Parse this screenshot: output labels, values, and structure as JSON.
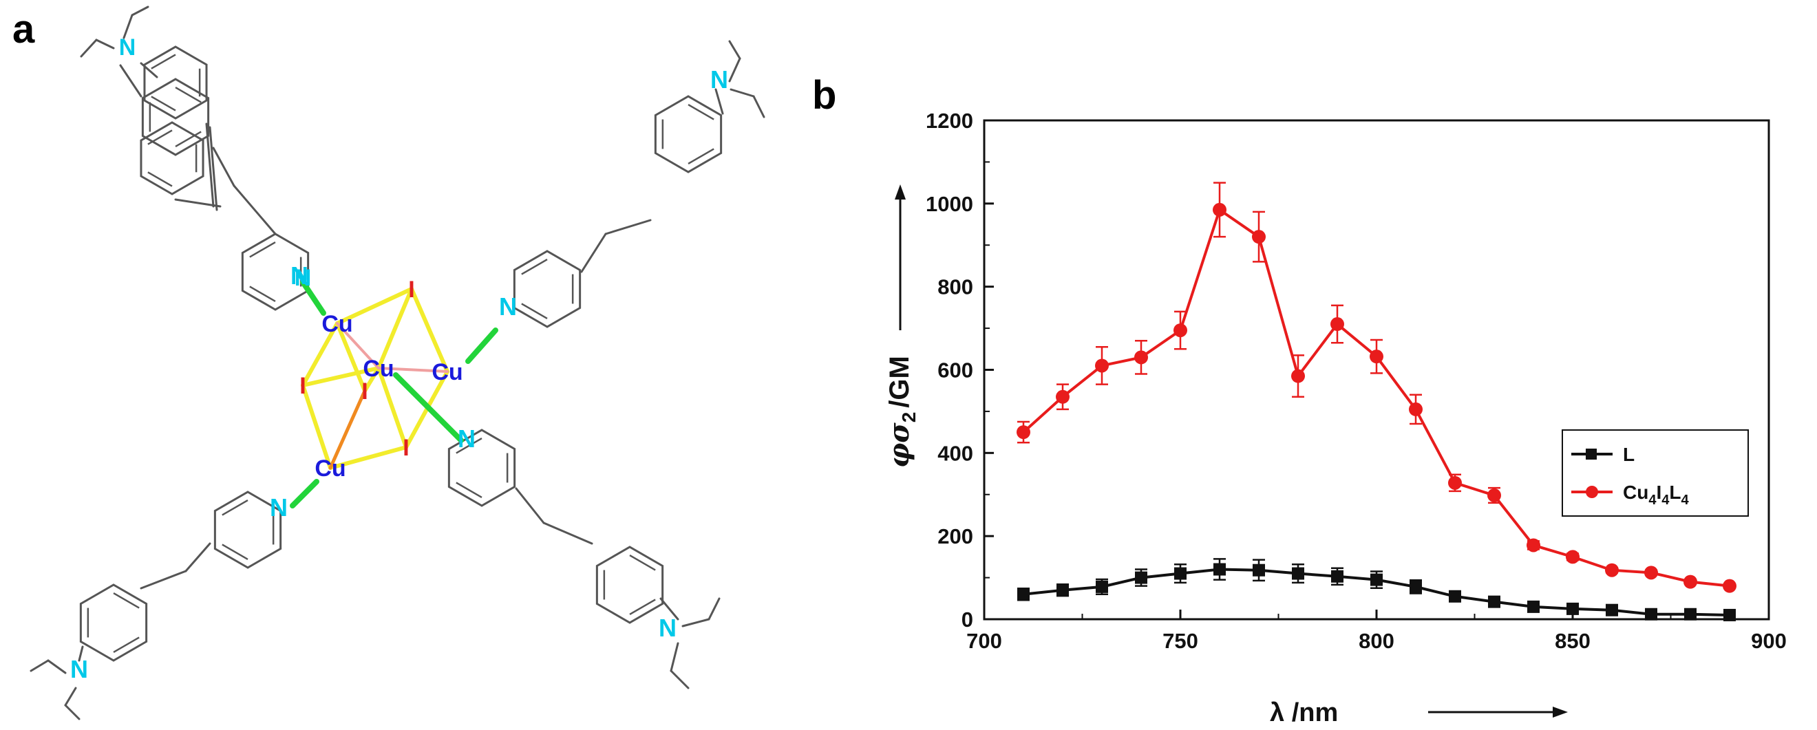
{
  "panels": {
    "a": "a",
    "b": "b"
  },
  "molecule": {
    "atoms": {
      "cu": "Cu",
      "iodine": "I",
      "nitrogen": "N"
    },
    "colors": {
      "bond": "#555555",
      "copper": "#1a1adb",
      "iodine": "#e02020",
      "nitrogen": "#00c8e8",
      "cu_i_bond": "#f2ec2c",
      "cu_n_bond": "#22d43a",
      "cu_cu_bond": "#f0a0a0",
      "cu_i_long_bond": "#f08a20"
    }
  },
  "chart_data": {
    "type": "line",
    "x": [
      710,
      720,
      730,
      740,
      750,
      760,
      770,
      780,
      790,
      800,
      810,
      820,
      830,
      840,
      850,
      860,
      870,
      880,
      890
    ],
    "series": [
      {
        "name": "L",
        "legend_parts": [
          "L"
        ],
        "color": "#111111",
        "marker": "square",
        "values": [
          60,
          70,
          78,
          100,
          110,
          120,
          118,
          110,
          103,
          95,
          78,
          55,
          42,
          30,
          25,
          22,
          12,
          12,
          10
        ],
        "errors": [
          14,
          14,
          18,
          20,
          22,
          25,
          25,
          22,
          20,
          20,
          16,
          10,
          8,
          6,
          5,
          5,
          4,
          4,
          4
        ]
      },
      {
        "name": "Cu4I4L4",
        "legend_parts": [
          "Cu",
          "4",
          "I",
          "4",
          "L",
          "4"
        ],
        "color": "#e81c1c",
        "marker": "circle",
        "values": [
          450,
          535,
          610,
          630,
          695,
          985,
          920,
          585,
          710,
          632,
          505,
          328,
          298,
          178,
          150,
          118,
          112,
          90,
          80
        ],
        "errors": [
          25,
          30,
          45,
          40,
          45,
          65,
          60,
          50,
          45,
          40,
          35,
          20,
          18,
          10,
          8,
          6,
          6,
          5,
          5
        ]
      }
    ],
    "xlim": [
      700,
      900
    ],
    "ylim": [
      0,
      1200
    ],
    "xticks": [
      "700",
      "750",
      "800",
      "850",
      "900"
    ],
    "yticks": [
      "0",
      "200",
      "400",
      "600",
      "800",
      "1000",
      "1200"
    ],
    "xlabel": "λ /nm",
    "ylabel": {
      "phi": "φ",
      "sigma": "σ",
      "sub": "2",
      "unit": "/GM"
    },
    "legend_position": "right",
    "grid": false
  }
}
